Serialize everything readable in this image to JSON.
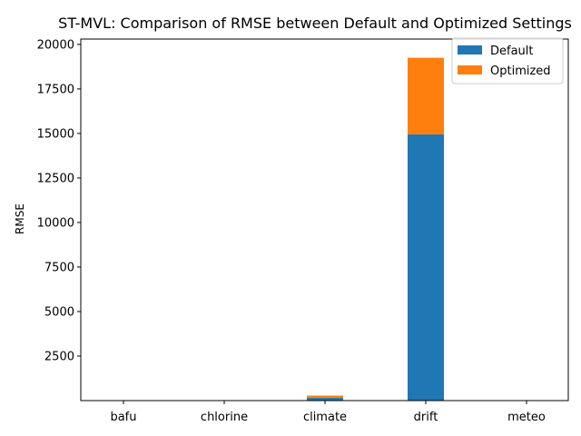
{
  "chart_data": {
    "type": "bar",
    "stacked": true,
    "title": "ST-MVL: Comparison of RMSE between Default and Optimized Settings",
    "xlabel": "",
    "ylabel": "RMSE",
    "categories": [
      "bafu",
      "chlorine",
      "climate",
      "drift",
      "meteo"
    ],
    "series": [
      {
        "name": "Default",
        "color": "#1f77b4",
        "values": [
          1,
          1,
          150,
          14950,
          1
        ]
      },
      {
        "name": "Optimized",
        "color": "#ff7f0e",
        "values": [
          1,
          1,
          130,
          4300,
          1
        ]
      }
    ],
    "ylim": [
      0,
      20300
    ],
    "yticks": [
      2500,
      5000,
      7500,
      10000,
      12500,
      15000,
      17500,
      20000
    ],
    "ytick_labels": [
      "2500",
      "5000",
      "7500",
      "10000",
      "12500",
      "15000",
      "17500",
      "20000"
    ],
    "legend_position": "upper-right",
    "grid": false
  }
}
